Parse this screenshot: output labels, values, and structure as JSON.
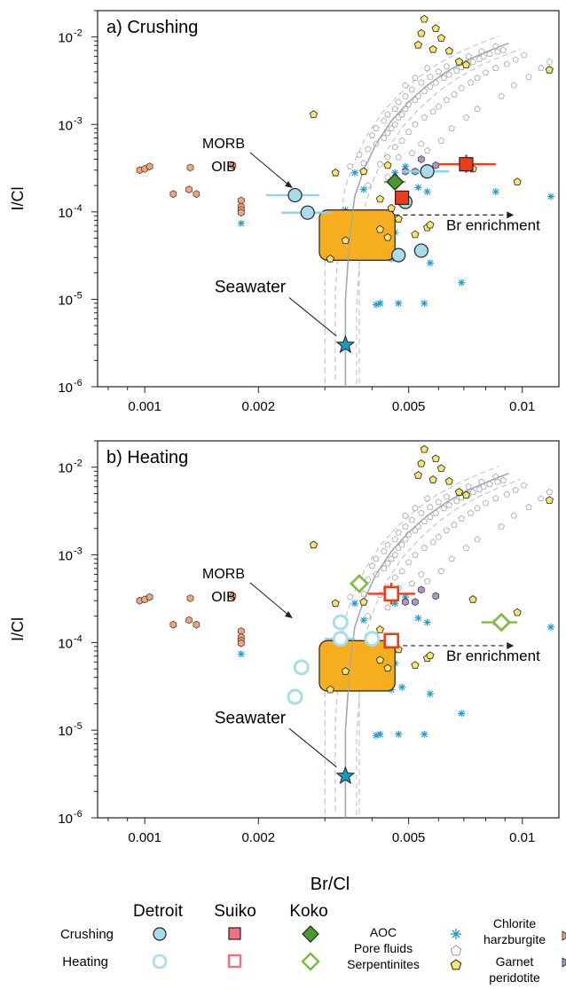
{
  "colors": {
    "detroit": "#a9dcea",
    "detroit_edge": "#222222",
    "detroit_heat": "#a9dcea",
    "suiko": "#f03c1a",
    "suiko_heat_edge": "#f03c1a",
    "koko": "#4c9a2a",
    "koko_heat": "#7dbb3c",
    "morb_box": "#f7ae1e",
    "aoc": "#1b9ad0",
    "serp_edge": "#999999",
    "garnet": "#f5e66c",
    "chlorite": "#f2a57a",
    "other": "#b394c8",
    "seawater": "#1f9ab8",
    "errbar_detroit": "#8fd3e4",
    "errbar_suiko": "#f03c1a",
    "errbar_koko": "#7dbb3c"
  },
  "chart_data": [
    {
      "type": "scatter",
      "panel_label": "a) Crushing",
      "xlabel": "",
      "ylabel": "I/Cl",
      "x_scale": "log",
      "y_scale": "log",
      "xlim": [
        0.00075,
        0.0125
      ],
      "ylim": [
        1e-06,
        0.02
      ],
      "x_ticks": [
        {
          "v": 0.001,
          "label": "0.001"
        },
        {
          "v": 0.002,
          "label": "0.002"
        },
        {
          "v": 0.005,
          "label": "0.005"
        },
        {
          "v": 0.01,
          "label": "0.01"
        }
      ],
      "y_ticks": [
        {
          "v": 1e-06,
          "label": "10",
          "exp": "-6"
        },
        {
          "v": 1e-05,
          "label": "10",
          "exp": "-5"
        },
        {
          "v": 0.0001,
          "label": "10",
          "exp": "-4"
        },
        {
          "v": 0.001,
          "label": "10",
          "exp": "-3"
        },
        {
          "v": 0.01,
          "label": "10",
          "exp": "-2"
        }
      ],
      "annotations": {
        "morb": "MORB",
        "oib": "OIB",
        "seawater": "Seawater",
        "br_enrichment": "Br enrichment"
      },
      "seawater": {
        "x": 0.0034,
        "y": 3e-06
      },
      "morb_box": {
        "x0": 0.0029,
        "x1": 0.0046,
        "y0": 2.8e-05,
        "y1": 0.000105
      },
      "br_arrow": {
        "x0": 0.0046,
        "x1": 0.0095,
        "y": 9.2e-05
      },
      "detroit": [
        {
          "x": 0.0025,
          "y": 0.000155,
          "xerr": [
            0.0021,
            0.0029
          ]
        },
        {
          "x": 0.0027,
          "y": 9.8e-05,
          "xerr": [
            0.0023,
            0.0031
          ]
        },
        {
          "x": 0.0049,
          "y": 0.00013
        },
        {
          "x": 0.0047,
          "y": 3.2e-05
        },
        {
          "x": 0.0054,
          "y": 3.6e-05
        },
        {
          "x": 0.0056,
          "y": 0.00029,
          "xerr": [
            0.0048,
            0.0064
          ]
        }
      ],
      "suiko": [
        {
          "x": 0.0048,
          "y": 0.000145
        },
        {
          "x": 0.0071,
          "y": 0.00035,
          "xerr": [
            0.006,
            0.0085
          ],
          "yerr": [
            0.00028,
            0.00045
          ]
        }
      ],
      "koko": [
        {
          "x": 0.0046,
          "y": 0.00022,
          "xerr": [
            0.0043,
            0.0049
          ]
        }
      ]
    },
    {
      "type": "scatter",
      "panel_label": "b) Heating",
      "xlabel": "Br/Cl",
      "ylabel": "I/Cl",
      "x_scale": "log",
      "y_scale": "log",
      "xlim": [
        0.00075,
        0.0125
      ],
      "ylim": [
        1e-06,
        0.02
      ],
      "x_ticks": [
        {
          "v": 0.001,
          "label": "0.001"
        },
        {
          "v": 0.002,
          "label": "0.002"
        },
        {
          "v": 0.005,
          "label": "0.005"
        },
        {
          "v": 0.01,
          "label": "0.01"
        }
      ],
      "y_ticks": [
        {
          "v": 1e-06,
          "label": "10",
          "exp": "-6"
        },
        {
          "v": 1e-05,
          "label": "10",
          "exp": "-5"
        },
        {
          "v": 0.0001,
          "label": "10",
          "exp": "-4"
        },
        {
          "v": 0.001,
          "label": "10",
          "exp": "-3"
        },
        {
          "v": 0.01,
          "label": "10",
          "exp": "-2"
        }
      ],
      "annotations": {
        "morb": "MORB",
        "oib": "OIB",
        "seawater": "Seawater",
        "br_enrichment": "Br enrichment"
      },
      "seawater": {
        "x": 0.0034,
        "y": 3e-06
      },
      "morb_box": {
        "x0": 0.0029,
        "x1": 0.0046,
        "y0": 2.8e-05,
        "y1": 0.000105
      },
      "br_arrow": {
        "x0": 0.0046,
        "x1": 0.0095,
        "y": 9.2e-05
      },
      "detroit": [
        {
          "x": 0.0033,
          "y": 0.00017
        },
        {
          "x": 0.0033,
          "y": 0.00011,
          "xerr": [
            0.003,
            0.0036
          ]
        },
        {
          "x": 0.004,
          "y": 0.00011
        },
        {
          "x": 0.0026,
          "y": 5.2e-05
        },
        {
          "x": 0.0025,
          "y": 2.4e-05
        }
      ],
      "suiko": [
        {
          "x": 0.0045,
          "y": 0.00036,
          "xerr": [
            0.0039,
            0.0052
          ],
          "yerr": [
            0.00027,
            0.00048
          ]
        },
        {
          "x": 0.0045,
          "y": 0.000105
        }
      ],
      "koko": [
        {
          "x": 0.0037,
          "y": 0.00047,
          "xerr": [
            0.0035,
            0.0039
          ]
        },
        {
          "x": 0.0088,
          "y": 0.00017,
          "xerr": [
            0.0078,
            0.0097
          ]
        }
      ]
    }
  ],
  "background": {
    "pore_fluids": [
      [
        0.0036,
        0.00028
      ],
      [
        0.0038,
        0.00018
      ],
      [
        0.0041,
        7.8e-05
      ],
      [
        0.0038,
        5.2e-05
      ],
      [
        0.0036,
        4.3e-05
      ],
      [
        0.0034,
        0.000105
      ],
      [
        0.0046,
        5.8e-05
      ],
      [
        0.0045,
        3.4e-05
      ],
      [
        0.0045,
        2.9e-05
      ],
      [
        0.0048,
        3.1e-05
      ],
      [
        0.0053,
        0.00019
      ],
      [
        0.0056,
        0.00017
      ],
      [
        0.0057,
        2.6e-05
      ],
      [
        0.0041,
        8.7e-06
      ],
      [
        0.0042,
        9e-06
      ],
      [
        0.0047,
        9e-06
      ],
      [
        0.0055,
        9e-06
      ],
      [
        0.0069,
        1.55e-05
      ],
      [
        0.0085,
        0.00017
      ],
      [
        0.0119,
        0.00015
      ],
      [
        0.0018,
        7.4e-05
      ],
      [
        0.0046,
        0.00028
      ],
      [
        0.0049,
        0.00033
      ]
    ],
    "chlorite": [
      [
        0.00097,
        0.0003
      ],
      [
        0.001,
        0.00031
      ],
      [
        0.00103,
        0.00033
      ],
      [
        0.00119,
        0.00016
      ],
      [
        0.00131,
        0.00018
      ],
      [
        0.00137,
        0.00016
      ],
      [
        0.00132,
        0.00032
      ],
      [
        0.00171,
        0.00034
      ],
      [
        0.0018,
        0.000135
      ],
      [
        0.0018,
        0.000115
      ],
      [
        0.0018,
        0.000105
      ],
      [
        0.0018,
        9.8e-05
      ]
    ],
    "other": [
      [
        0.0054,
        0.0004
      ],
      [
        0.0059,
        0.00034
      ],
      [
        0.0052,
        0.00029
      ],
      [
        0.0049,
        0.00029
      ]
    ],
    "garnet": [
      [
        0.0028,
        0.0013
      ],
      [
        0.0055,
        0.016
      ],
      [
        0.0059,
        0.0125
      ],
      [
        0.0054,
        0.011
      ],
      [
        0.0061,
        0.0097
      ],
      [
        0.0053,
        0.0081
      ],
      [
        0.0058,
        0.0072
      ],
      [
        0.0064,
        0.0069
      ],
      [
        0.0068,
        0.0052
      ],
      [
        0.0071,
        0.0048
      ],
      [
        0.0118,
        0.0042
      ],
      [
        0.0044,
        0.00034
      ],
      [
        0.0038,
        0.00029
      ],
      [
        0.0032,
        0.00028
      ],
      [
        0.0042,
        0.00014
      ],
      [
        0.0047,
        8.3e-05
      ],
      [
        0.0042,
        6.3e-05
      ],
      [
        0.0052,
        5.5e-05
      ],
      [
        0.0056,
        6.6e-05
      ],
      [
        0.0057,
        7.1e-05
      ],
      [
        0.0044,
        5.1e-05
      ],
      [
        0.0031,
        2.9e-05
      ],
      [
        0.0034,
        4.7e-05
      ],
      [
        0.0045,
        0.00011
      ],
      [
        0.0097,
        0.00022
      ],
      [
        0.0074,
        0.00031
      ]
    ],
    "serpentinite_points": [
      [
        0.0037,
        0.00045
      ],
      [
        0.0039,
        0.00052
      ],
      [
        0.0041,
        0.0006
      ],
      [
        0.0043,
        0.0007
      ],
      [
        0.0044,
        0.0008
      ],
      [
        0.0045,
        0.0009
      ],
      [
        0.0046,
        0.001
      ],
      [
        0.0047,
        0.0012
      ],
      [
        0.0048,
        0.0013
      ],
      [
        0.0049,
        0.0015
      ],
      [
        0.005,
        0.0017
      ],
      [
        0.0052,
        0.0019
      ],
      [
        0.0053,
        0.0021
      ],
      [
        0.0055,
        0.0024
      ],
      [
        0.0057,
        0.0027
      ],
      [
        0.0059,
        0.003
      ],
      [
        0.0062,
        0.0034
      ],
      [
        0.0064,
        0.0037
      ],
      [
        0.0067,
        0.0041
      ],
      [
        0.0069,
        0.0045
      ],
      [
        0.0072,
        0.0049
      ],
      [
        0.0074,
        0.0052
      ],
      [
        0.0077,
        0.0056
      ],
      [
        0.0079,
        0.006
      ],
      [
        0.0082,
        0.0064
      ],
      [
        0.0086,
        0.0068
      ],
      [
        0.0089,
        0.0071
      ],
      [
        0.0042,
        0.00035
      ],
      [
        0.0044,
        0.00042
      ],
      [
        0.0046,
        0.00055
      ],
      [
        0.0048,
        0.00065
      ],
      [
        0.005,
        0.00082
      ],
      [
        0.0052,
        0.001
      ],
      [
        0.0055,
        0.0012
      ],
      [
        0.0058,
        0.0014
      ],
      [
        0.006,
        0.0016
      ],
      [
        0.0063,
        0.0019
      ],
      [
        0.0066,
        0.0022
      ],
      [
        0.0069,
        0.0026
      ],
      [
        0.0073,
        0.003
      ],
      [
        0.0076,
        0.0034
      ],
      [
        0.008,
        0.0039
      ],
      [
        0.0085,
        0.0044
      ],
      [
        0.0091,
        0.0049
      ],
      [
        0.0096,
        0.0055
      ],
      [
        0.0101,
        0.0062
      ],
      [
        0.004,
        0.00075
      ],
      [
        0.0041,
        0.0009
      ],
      [
        0.0043,
        0.0011
      ],
      [
        0.0044,
        0.0013
      ],
      [
        0.0046,
        0.0015
      ],
      [
        0.0047,
        0.0018
      ],
      [
        0.0049,
        0.0021
      ],
      [
        0.0051,
        0.0025
      ],
      [
        0.0054,
        0.003
      ],
      [
        0.0057,
        0.0035
      ],
      [
        0.006,
        0.004
      ],
      [
        0.0063,
        0.0046
      ],
      [
        0.0068,
        0.0053
      ],
      [
        0.0072,
        0.006
      ],
      [
        0.0078,
        0.0068
      ],
      [
        0.0085,
        0.0078
      ],
      [
        0.0038,
        0.00036
      ],
      [
        0.0035,
        0.00033
      ],
      [
        0.0047,
        0.00042
      ],
      [
        0.0051,
        0.00047
      ],
      [
        0.0056,
        0.0005
      ],
      [
        0.0054,
        0.0006
      ],
      [
        0.0061,
        0.00065
      ],
      [
        0.0039,
        0.0002
      ],
      [
        0.0044,
        0.00025
      ],
      [
        0.0065,
        0.0009
      ],
      [
        0.0071,
        0.0012
      ],
      [
        0.0076,
        0.0015
      ],
      [
        0.0088,
        0.0021
      ],
      [
        0.0095,
        0.0028
      ],
      [
        0.0104,
        0.0035
      ],
      [
        0.0112,
        0.0044
      ],
      [
        0.0118,
        0.0052
      ],
      [
        0.0052,
        0.0034
      ],
      [
        0.0049,
        0.0028
      ],
      [
        0.0056,
        0.0044
      ]
    ],
    "curve": [
      [
        0.0034,
        1e-06
      ],
      [
        0.0034,
        1e-05
      ],
      [
        0.0035,
        6e-05
      ],
      [
        0.0036,
        0.00015
      ],
      [
        0.0038,
        0.0003
      ],
      [
        0.0041,
        0.0006
      ],
      [
        0.0045,
        0.0011
      ],
      [
        0.005,
        0.0018
      ],
      [
        0.0056,
        0.0028
      ],
      [
        0.0063,
        0.004
      ],
      [
        0.0072,
        0.0055
      ],
      [
        0.0082,
        0.007
      ],
      [
        0.0092,
        0.0085
      ]
    ]
  },
  "legend": {
    "col_detroit": "Detroit",
    "col_suiko": "Suiko",
    "col_koko": "Koko",
    "row_crushing": "Crushing",
    "row_heating": "Heating",
    "aoc": "AOC",
    "pore_fluids": "Pore fluids",
    "serpentinites": "Serpentinites",
    "chlorite_line1": "Chlorite",
    "chlorite_line2": "harzburgite",
    "garnet_line1": "Garnet",
    "garnet_line2": "peridotite"
  }
}
